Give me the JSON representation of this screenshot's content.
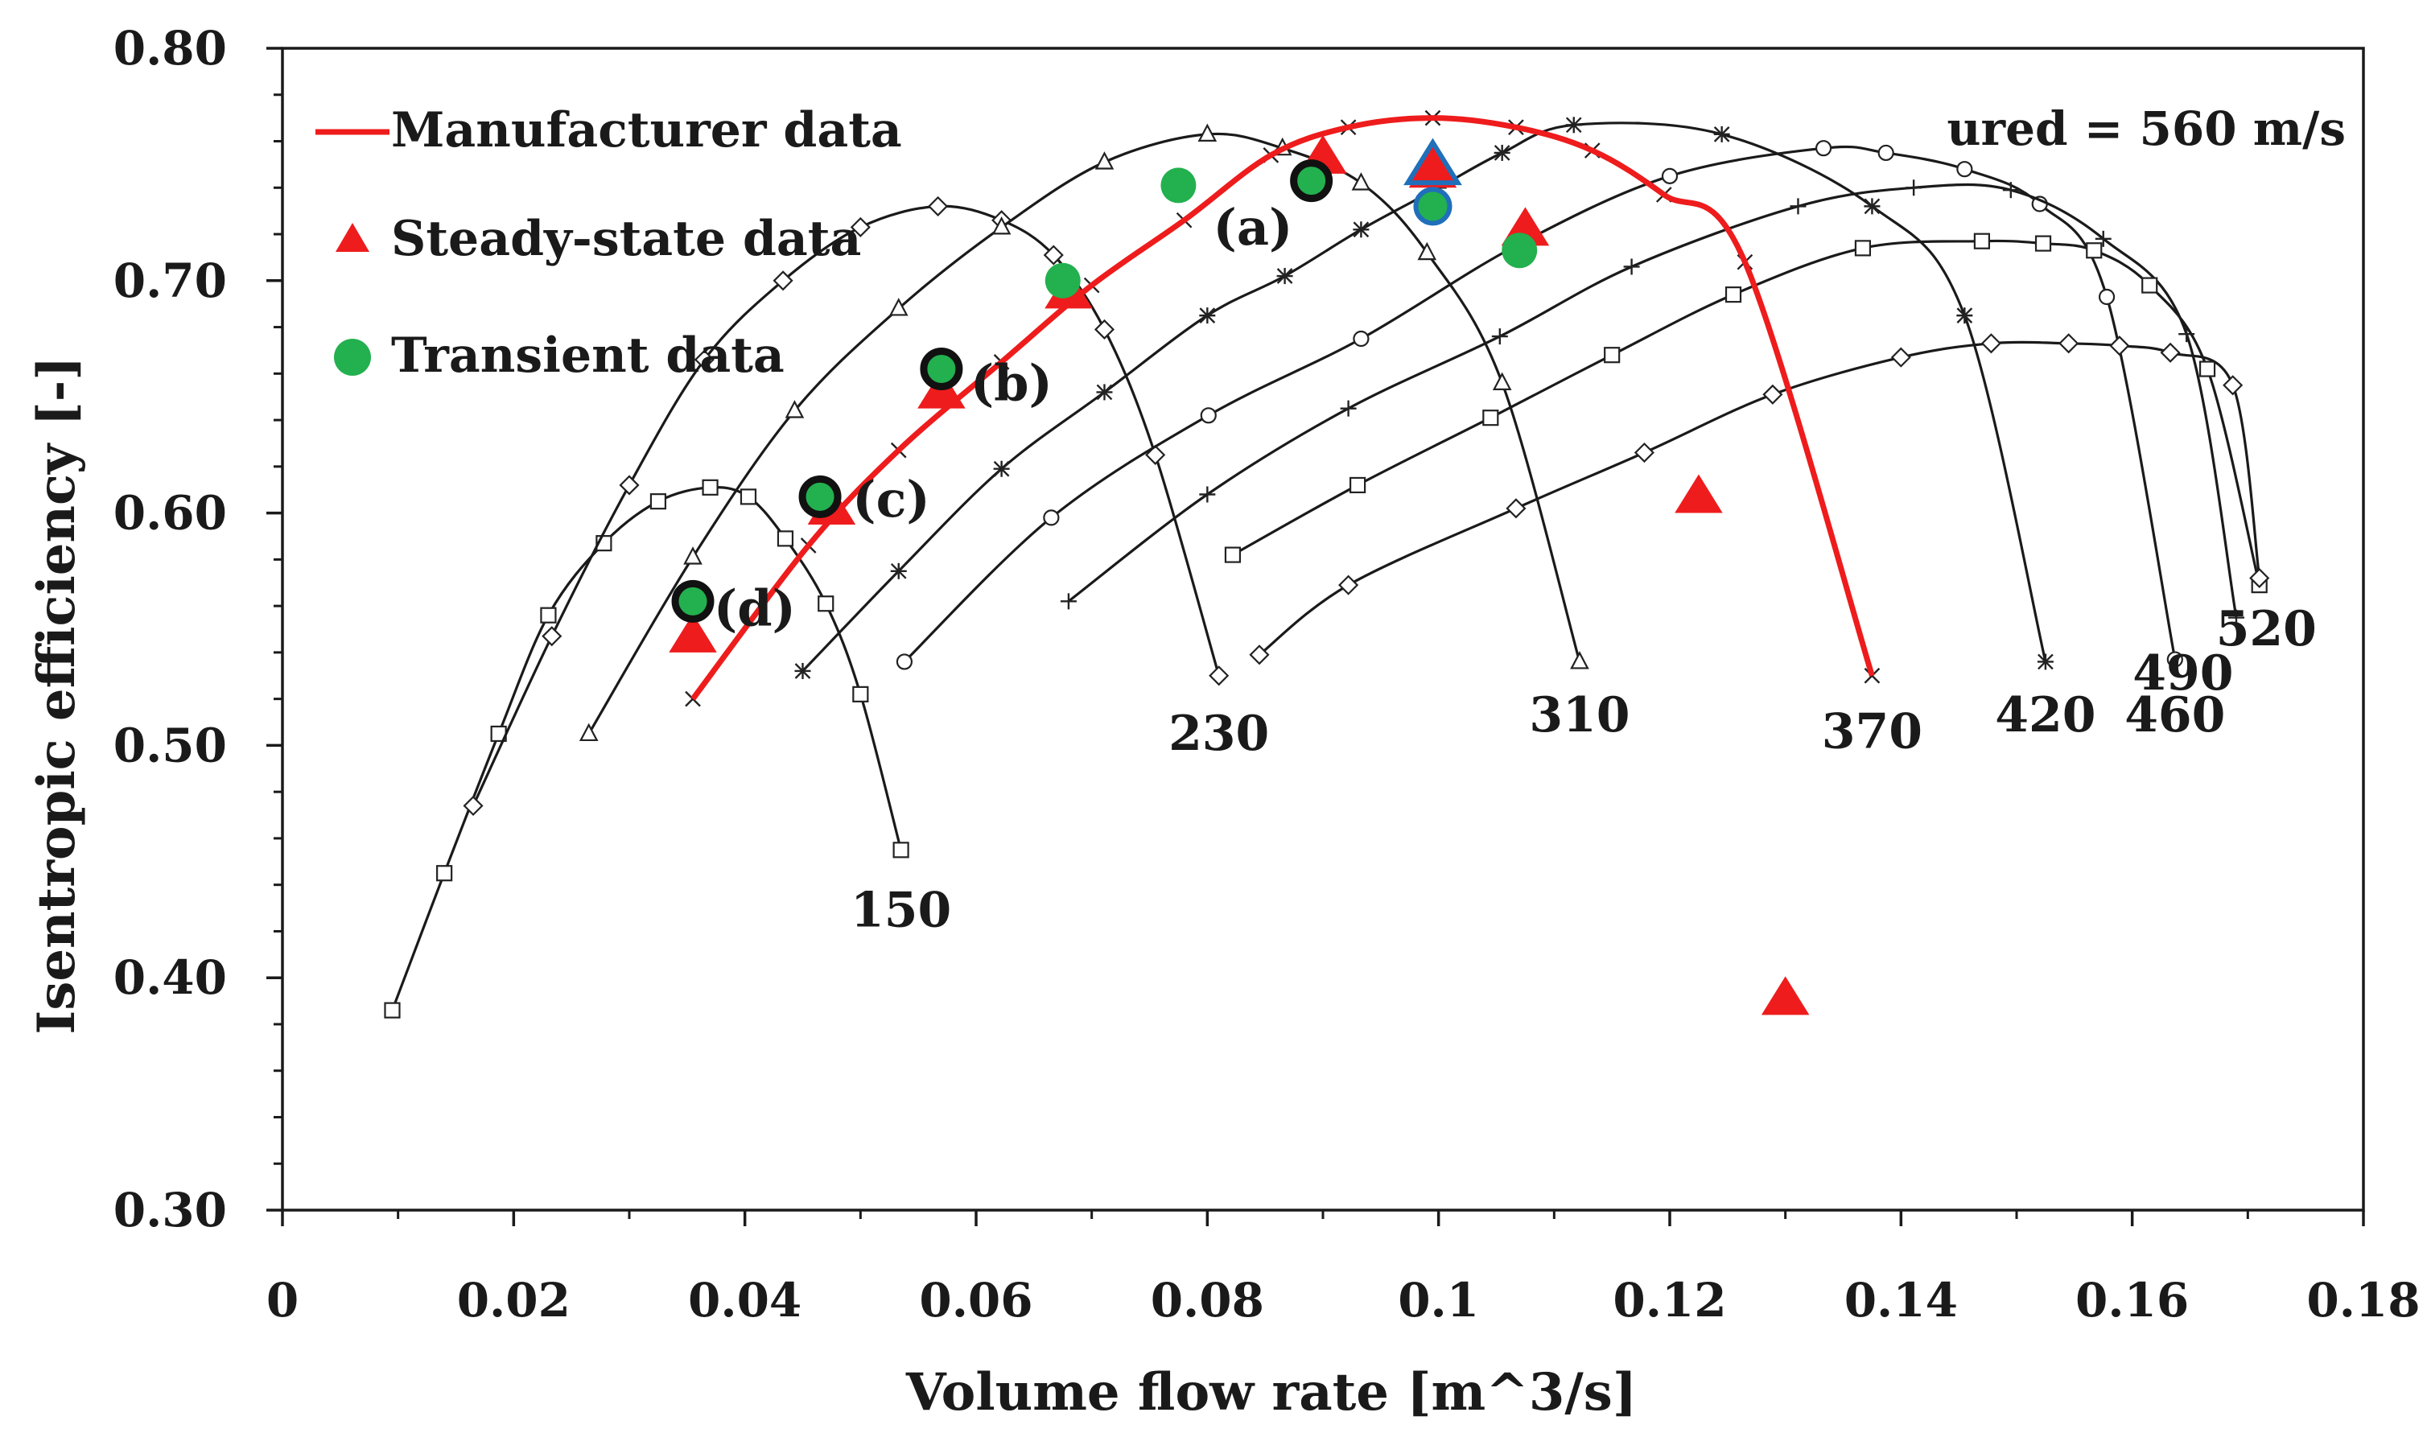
{
  "chart_data": {
    "type": "line",
    "title": "",
    "xlabel": "Volume flow rate [m^3/s]",
    "ylabel": "Isentropic efficiency [-]",
    "xlim": [
      0,
      0.18
    ],
    "ylim": [
      0.3,
      0.8
    ],
    "x_ticks": [
      0,
      0.02,
      0.04,
      0.06,
      0.08,
      0.1,
      0.12,
      0.14,
      0.16,
      0.18
    ],
    "x_tick_labels": [
      "0",
      "0.02",
      "0.04",
      "0.06",
      "0.08",
      "0.1",
      "0.12",
      "0.14",
      "0.16",
      "0.18"
    ],
    "y_ticks": [
      0.3,
      0.4,
      0.5,
      0.6,
      0.7,
      0.8
    ],
    "y_tick_labels": [
      "0.30",
      "0.40",
      "0.50",
      "0.60",
      "0.70",
      "0.80"
    ],
    "grid": false,
    "legend": {
      "position": "top-left",
      "entries": [
        {
          "label": "Manufacturer data",
          "marker": "line",
          "color": "#ee1c1c"
        },
        {
          "label": "Steady-state data",
          "marker": "triangle",
          "color": "#ee1c1c"
        },
        {
          "label": "Transient data",
          "marker": "circle",
          "color": "#23b04f"
        }
      ]
    },
    "speed_annotation": "ured = 560 m/s",
    "speed_lines": [
      {
        "name": "150",
        "marker": "square",
        "label_at": [
          0.0535,
          0.422
        ],
        "x": [
          0.0095,
          0.014,
          0.0187,
          0.023,
          0.0278,
          0.0325,
          0.037,
          0.0403,
          0.0435,
          0.047,
          0.05,
          0.0535
        ],
        "y": [
          0.386,
          0.445,
          0.505,
          0.556,
          0.587,
          0.605,
          0.611,
          0.607,
          0.589,
          0.561,
          0.522,
          0.455
        ]
      },
      {
        "name": "230",
        "marker": "diamond",
        "label_at": [
          0.081,
          0.498
        ],
        "x": [
          0.0165,
          0.0233,
          0.03,
          0.0365,
          0.0433,
          0.05,
          0.0567,
          0.0622,
          0.0667,
          0.0711,
          0.0755,
          0.081
        ],
        "y": [
          0.474,
          0.547,
          0.612,
          0.666,
          0.7,
          0.723,
          0.732,
          0.726,
          0.711,
          0.679,
          0.625,
          0.53
        ]
      },
      {
        "name": "310",
        "marker": "triangle",
        "label_at": [
          0.1122,
          0.506
        ],
        "x": [
          0.0265,
          0.0355,
          0.0443,
          0.0533,
          0.0622,
          0.0711,
          0.08,
          0.0865,
          0.0933,
          0.099,
          0.1055,
          0.1122
        ],
        "y": [
          0.505,
          0.581,
          0.644,
          0.688,
          0.723,
          0.751,
          0.763,
          0.757,
          0.742,
          0.712,
          0.656,
          0.536
        ]
      },
      {
        "name": "370",
        "marker": "x",
        "label_at": [
          0.1375,
          0.499
        ],
        "x": [
          0.0355,
          0.0455,
          0.0533,
          0.0622,
          0.07,
          0.078,
          0.0855,
          0.0922,
          0.0995,
          0.1067,
          0.1133,
          0.1195,
          0.1265,
          0.1375
        ],
        "y": [
          0.52,
          0.586,
          0.627,
          0.665,
          0.698,
          0.726,
          0.754,
          0.766,
          0.77,
          0.766,
          0.756,
          0.737,
          0.708,
          0.53
        ]
      },
      {
        "name": "420",
        "marker": "asterisk",
        "label_at": [
          0.1525,
          0.506
        ],
        "x": [
          0.045,
          0.0533,
          0.0622,
          0.0711,
          0.08,
          0.0867,
          0.0933,
          0.1,
          0.1055,
          0.1117,
          0.1245,
          0.1375,
          0.1455,
          0.1525
        ],
        "y": [
          0.532,
          0.575,
          0.619,
          0.652,
          0.685,
          0.702,
          0.722,
          0.74,
          0.755,
          0.767,
          0.763,
          0.732,
          0.685,
          0.536
        ]
      },
      {
        "name": "460",
        "marker": "circle",
        "label_at": [
          0.1637,
          0.506
        ],
        "x": [
          0.0538,
          0.0665,
          0.0801,
          0.0933,
          0.1067,
          0.12,
          0.1333,
          0.1387,
          0.1455,
          0.152,
          0.1578,
          0.1637
        ],
        "y": [
          0.536,
          0.598,
          0.642,
          0.675,
          0.715,
          0.745,
          0.757,
          0.755,
          0.748,
          0.733,
          0.693,
          0.537
        ]
      },
      {
        "name": "490",
        "marker": "plus",
        "label_at": [
          0.1644,
          0.524
        ],
        "x": [
          0.068,
          0.08,
          0.0922,
          0.1053,
          0.1167,
          0.1311,
          0.1411,
          0.1495,
          0.1575,
          0.1647,
          0.169
        ],
        "y": [
          0.562,
          0.608,
          0.645,
          0.676,
          0.706,
          0.732,
          0.74,
          0.739,
          0.718,
          0.677,
          0.555
        ]
      },
      {
        "name": "520",
        "marker": "square",
        "label_at": [
          0.1716,
          0.543
        ],
        "x": [
          0.0822,
          0.093,
          0.1045,
          0.115,
          0.1255,
          0.1367,
          0.147,
          0.1523,
          0.1567,
          0.1615,
          0.1665,
          0.171
        ],
        "y": [
          0.582,
          0.612,
          0.641,
          0.668,
          0.694,
          0.714,
          0.717,
          0.716,
          0.713,
          0.698,
          0.662,
          0.569
        ]
      },
      {
        "name": "560",
        "marker": "diamond",
        "x": [
          0.0845,
          0.0922,
          0.1067,
          0.1178,
          0.1289,
          0.14,
          0.1478,
          0.1545,
          0.1589,
          0.1633,
          0.1687,
          0.171
        ],
        "y": [
          0.539,
          0.569,
          0.602,
          0.626,
          0.651,
          0.667,
          0.673,
          0.673,
          0.672,
          0.669,
          0.655,
          0.572
        ]
      }
    ],
    "manufacturer_data": {
      "name": "Manufacturer data",
      "color": "#ee1c1c",
      "x": [
        0.0355,
        0.0455,
        0.0533,
        0.0622,
        0.07,
        0.078,
        0.0855,
        0.0922,
        0.0995,
        0.1067,
        0.1133,
        0.1195,
        0.1265,
        0.1375
      ],
      "y": [
        0.52,
        0.586,
        0.627,
        0.665,
        0.698,
        0.726,
        0.754,
        0.766,
        0.77,
        0.766,
        0.756,
        0.737,
        0.708,
        0.53
      ]
    },
    "steady_state_data": {
      "name": "Steady-state data",
      "color": "#ee1c1c",
      "points": [
        {
          "x": 0.0355,
          "y": 0.547
        },
        {
          "x": 0.0475,
          "y": 0.602
        },
        {
          "x": 0.057,
          "y": 0.652
        },
        {
          "x": 0.068,
          "y": 0.695
        },
        {
          "x": 0.09,
          "y": 0.753
        },
        {
          "x": 0.0995,
          "y": 0.747
        },
        {
          "x": 0.1075,
          "y": 0.722
        },
        {
          "x": 0.1225,
          "y": 0.607
        },
        {
          "x": 0.13,
          "y": 0.391
        }
      ],
      "highlighted": {
        "x": 0.0995,
        "y": 0.748,
        "outline": "#1f6fba"
      }
    },
    "transient_data": {
      "name": "Transient data",
      "color": "#23b04f",
      "points": [
        {
          "x": 0.0355,
          "y": 0.562,
          "outlined": true
        },
        {
          "x": 0.0465,
          "y": 0.607,
          "outlined": true
        },
        {
          "x": 0.057,
          "y": 0.662,
          "outlined": true
        },
        {
          "x": 0.0675,
          "y": 0.7,
          "outlined": false
        },
        {
          "x": 0.0775,
          "y": 0.741,
          "outlined": false
        },
        {
          "x": 0.089,
          "y": 0.743,
          "outlined": true
        },
        {
          "x": 0.0995,
          "y": 0.732,
          "outlined": false,
          "outline": "#1f6fba"
        },
        {
          "x": 0.107,
          "y": 0.713,
          "outlined": false
        }
      ]
    },
    "annotations": [
      {
        "text": "(a)",
        "x": 0.0805,
        "y": 0.7155
      },
      {
        "text": "(b)",
        "x": 0.0595,
        "y": 0.6485
      },
      {
        "text": "(c)",
        "x": 0.0493,
        "y": 0.5985
      },
      {
        "text": "(d)",
        "x": 0.0373,
        "y": 0.5515
      }
    ]
  }
}
